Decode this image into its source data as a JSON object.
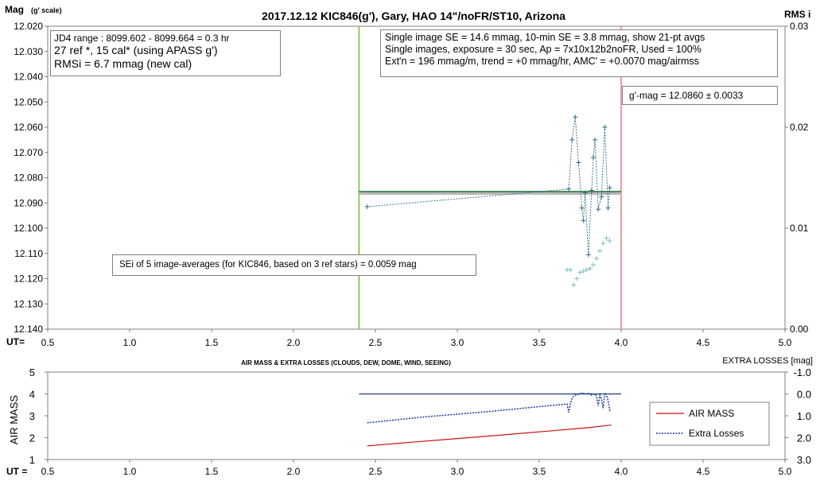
{
  "chart_data": [
    {
      "type": "scatter",
      "title": "2017.12.12  KIC846(g'),  Gary, HAO  14\"/noFR/ST10,  Arizona",
      "ylabel": "Mag",
      "ylabel_sub": "(g' scale)",
      "y2label": "RMS i",
      "xlabel": "UT=",
      "xlim": [
        0.5,
        5.0
      ],
      "ylim": [
        12.02,
        12.14
      ],
      "y_inverted": true,
      "y2lim": [
        0.0,
        0.03
      ],
      "xticks": [
        "0.5",
        "1.0",
        "1.5",
        "2.0",
        "2.5",
        "3.0",
        "3.5",
        "4.0",
        "4.5",
        "5.0"
      ],
      "yticks": [
        "12.020",
        "12.030",
        "12.040",
        "12.050",
        "12.060",
        "12.070",
        "12.080",
        "12.090",
        "12.100",
        "12.110",
        "12.120",
        "12.130",
        "12.140"
      ],
      "y2ticks": [
        "0.03",
        "0.02",
        "0.01",
        "0.00"
      ],
      "grid": false,
      "info_box": {
        "line1": "JD4 range : 8099.602 - 8099.664 = 0.3  hr",
        "line2": "27 ref *, 15 cal* (using APASS g')",
        "line3": "RMSi = 6.7 mmag (new cal)"
      },
      "stats_box": {
        "line1": "Single image SE = 14.6 mmag, 10-min SE = 3.8 mmag, show  21-pt avgs",
        "line2": "Single images, exposure = 30 sec, Ap = 7x10x12b2noFR,  Used = 100%",
        "line3": "Ext'n = 196 mmag/m, trend =  +0 mmag/hr, AMC' = +0.0070 mag/airmss"
      },
      "gmag_box": "g'-mag = 12.0860 ± 0.0033",
      "sei_box": "SEi of 5 image-averages (for KIC846, based on 3 ref stars) = 0.0059  mag",
      "mean_mag": 12.086,
      "fit_mag": 12.0855,
      "fit_range": [
        2.4,
        4.0
      ],
      "vlines": [
        {
          "x": 2.4,
          "color": "#7dbd3c"
        },
        {
          "x": 4.0,
          "color": "#e8838a"
        }
      ],
      "series": [
        {
          "name": "",
          "style": "plus-connected",
          "color": "#2e6b8a",
          "x": [
            2.45,
            3.68,
            3.7,
            3.72,
            3.74,
            3.76,
            3.77,
            3.78,
            3.8,
            3.82,
            3.83,
            3.84,
            3.86,
            3.88,
            3.9,
            3.92,
            3.93
          ],
          "y": [
            12.0915,
            12.0845,
            12.065,
            12.056,
            12.074,
            12.092,
            12.097,
            12.086,
            12.1105,
            12.085,
            12.072,
            12.065,
            12.0925,
            12.0875,
            12.06,
            12.092,
            12.084
          ]
        },
        {
          "name": "",
          "style": "plus",
          "color": "#7fbcc4",
          "x": [
            3.67,
            3.69,
            3.71,
            3.73,
            3.75,
            3.77,
            3.79,
            3.81,
            3.83,
            3.85,
            3.87,
            3.89,
            3.91,
            3.93
          ],
          "y": [
            12.1165,
            12.1165,
            12.1225,
            12.12,
            12.1175,
            12.117,
            12.1165,
            12.116,
            12.1145,
            12.112,
            12.109,
            12.106,
            12.104,
            12.105
          ]
        }
      ]
    },
    {
      "type": "line",
      "title": "AIR MASS & EXTRA LOSSES (CLOUDS, DEW, DOME, WIND, SEEING)",
      "ylabel": "AIR MASS",
      "y2label": "EXTRA LOSSES [mag]",
      "xlabel": "UT =",
      "xlim": [
        0.5,
        5.0
      ],
      "ylim": [
        1,
        5
      ],
      "y2lim": [
        -1.0,
        3.0
      ],
      "y2_inverted": true,
      "xticks": [
        "0.5",
        "1.0",
        "1.5",
        "2.0",
        "2.5",
        "3.0",
        "3.5",
        "4.0",
        "4.5",
        "5.0"
      ],
      "yticks": [
        "1",
        "2",
        "3",
        "4",
        "5"
      ],
      "y2ticks": [
        "-1.0",
        "0.0",
        "1.0",
        "2.0",
        "3.0"
      ],
      "legend": "right",
      "baseline_zero": {
        "x": [
          2.4,
          4.0
        ],
        "color": "#1f3a7a"
      },
      "series": [
        {
          "name": "AIR MASS",
          "color": "#cc1111",
          "axis": "left",
          "x": [
            2.45,
            2.7,
            3.0,
            3.3,
            3.6,
            3.8,
            3.94
          ],
          "y": [
            1.62,
            1.78,
            1.96,
            2.14,
            2.33,
            2.46,
            2.58
          ]
        },
        {
          "name": "Extra Losses",
          "color": "#1f3a9a",
          "axis": "right",
          "x": [
            2.45,
            2.8,
            3.2,
            3.5,
            3.67,
            3.68,
            3.69,
            3.7,
            3.71,
            3.72,
            3.74,
            3.76,
            3.78,
            3.8,
            3.82,
            3.84,
            3.85,
            3.86,
            3.87,
            3.88,
            3.89,
            3.9,
            3.91,
            3.92,
            3.93,
            3.94
          ],
          "y": [
            1.32,
            1.05,
            0.8,
            0.58,
            0.46,
            0.85,
            0.45,
            0.2,
            0.1,
            0.05,
            0.02,
            -0.05,
            0.0,
            -0.03,
            0.05,
            0.0,
            0.1,
            0.55,
            0.05,
            0.25,
            0.65,
            -0.05,
            0.05,
            0.3,
            0.75,
            0.7
          ]
        }
      ]
    }
  ]
}
